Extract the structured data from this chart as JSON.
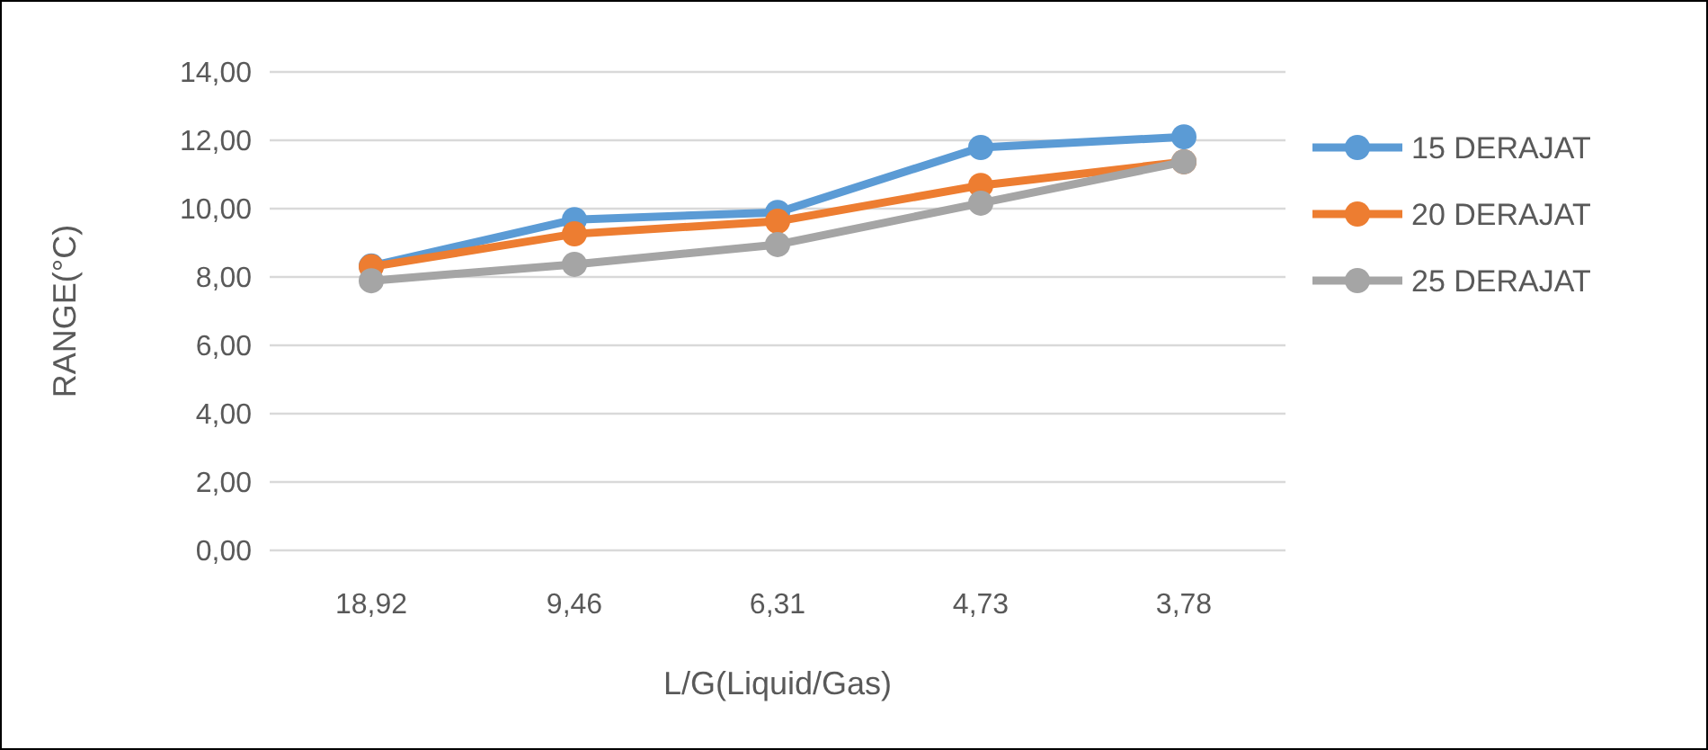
{
  "chart_data": {
    "type": "line",
    "xlabel": "L/G(Liquid/Gas)",
    "ylabel": "RANGE(°C)",
    "categories": [
      "18,92",
      "9,46",
      "6,31",
      "4,73",
      "3,78"
    ],
    "series": [
      {
        "name": "15 DERAJAT",
        "color": "#5b9bd5",
        "values": [
          8.32,
          9.68,
          9.89,
          11.79,
          12.1
        ]
      },
      {
        "name": "20 DERAJAT",
        "color": "#ed7d31",
        "values": [
          8.3,
          9.26,
          9.63,
          10.68,
          11.37
        ]
      },
      {
        "name": "25 DERAJAT",
        "color": "#a5a5a5",
        "values": [
          7.89,
          8.37,
          8.95,
          10.16,
          11.37
        ]
      }
    ],
    "ylim": [
      0,
      14
    ],
    "yticks": [
      {
        "value": 0,
        "label": "0,00"
      },
      {
        "value": 2,
        "label": "2,00"
      },
      {
        "value": 4,
        "label": "4,00"
      },
      {
        "value": 6,
        "label": "6,00"
      },
      {
        "value": 8,
        "label": "8,00"
      },
      {
        "value": 10,
        "label": "10,00"
      },
      {
        "value": 12,
        "label": "12,00"
      },
      {
        "value": 14,
        "label": "14,00"
      }
    ],
    "grid": "y",
    "legend": "right",
    "marker": "circle",
    "line_style": "solid"
  }
}
